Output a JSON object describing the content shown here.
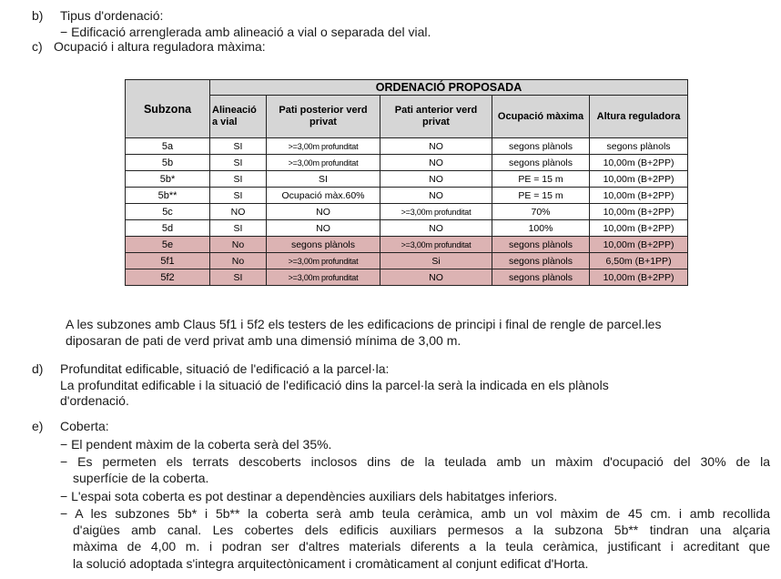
{
  "section_b": {
    "marker": "b)",
    "title": "Tipus d'ordenació:",
    "item": "− Edificació arrenglerada amb alineació a vial o separada del vial."
  },
  "section_c": {
    "marker": "c)",
    "title": "Ocupació i altura reguladora màxima:"
  },
  "table": {
    "group_header": "ORDENACIÓ PROPOSADA",
    "columns": [
      "Subzona",
      "Alineació a vial",
      "Pati posterior verd privat",
      "Pati anterior verd privat",
      "Ocupació màxima",
      "Altura reguladora"
    ],
    "rows": [
      {
        "subzona": "5a",
        "alineacio": "SI",
        "pati_posterior": ">=3,00m profunditat",
        "pati_anterior": "NO",
        "ocupacio": "segons plànols",
        "altura": "segons plànols",
        "highlight": false
      },
      {
        "subzona": "5b",
        "alineacio": "SI",
        "pati_posterior": ">=3,00m profunditat",
        "pati_anterior": "NO",
        "ocupacio": "segons plànols",
        "altura": "10,00m (B+2PP)",
        "highlight": false
      },
      {
        "subzona": "5b*",
        "alineacio": "SI",
        "pati_posterior": "SI",
        "pati_anterior": "NO",
        "ocupacio": "PE = 15 m",
        "altura": "10,00m (B+2PP)",
        "highlight": false
      },
      {
        "subzona": "5b**",
        "alineacio": "SI",
        "pati_posterior": "Ocupació màx.60%",
        "pati_anterior": "NO",
        "ocupacio": "PE = 15 m",
        "altura": "10,00m (B+2PP)",
        "highlight": false
      },
      {
        "subzona": "5c",
        "alineacio": "NO",
        "pati_posterior": "NO",
        "pati_anterior": ">=3,00m profunditat",
        "ocupacio": "70%",
        "altura": "10,00m (B+2PP)",
        "highlight": false
      },
      {
        "subzona": "5d",
        "alineacio": "SI",
        "pati_posterior": "NO",
        "pati_anterior": "NO",
        "ocupacio": "100%",
        "altura": "10,00m (B+2PP)",
        "highlight": false
      },
      {
        "subzona": "5e",
        "alineacio": "No",
        "pati_posterior": "segons plànols",
        "pati_anterior": ">=3,00m profunditat",
        "ocupacio": "segons plànols",
        "altura": "10,00m (B+2PP)",
        "highlight": true
      },
      {
        "subzona": "5f1",
        "alineacio": "No",
        "pati_posterior": ">=3,00m profunditat",
        "pati_anterior": "Si",
        "ocupacio": "segons plànols",
        "altura": "6,50m (B+1PP)",
        "highlight": true
      },
      {
        "subzona": "5f2",
        "alineacio": "SI",
        "pati_posterior": ">=3,00m profunditat",
        "pati_anterior": "NO",
        "ocupacio": "segons plànols",
        "altura": "10,00m (B+2PP)",
        "highlight": true
      }
    ],
    "highlight_color": "#dcb3b3",
    "header_color": "#d6d6d6"
  },
  "note": {
    "lines": [
      "A les subzones amb Claus 5f1 i 5f2  els testers de les edificacions de principi i final de rengle de parcel.les",
      "diposaran de pati de verd privat amb una dimensió mínima de 3,00 m."
    ]
  },
  "section_d": {
    "marker": "d)",
    "title": "Profunditat edificable, situació de l'edificació a la parcel·la:",
    "lines": [
      "La profunditat edificable i la situació de l'edificació dins la parcel·la serà la indicada en els plànols",
      "d'ordenació."
    ]
  },
  "section_e": {
    "marker": "e)",
    "title": "Coberta:",
    "lines": [
      "− El pendent màxim de la coberta serà del 35%.",
      "− Es permeten els terrats descoberts inclosos dins de la teulada amb un màxim d'ocupació del 30% de la",
      "superfície de la coberta.",
      "− L'espai sota coberta es pot destinar a dependències auxiliars dels habitatges inferiors.",
      "− A les subzones 5b* i 5b** la coberta serà amb teula ceràmica, amb un vol màxim de 45 cm. i amb recollida",
      "d'aigües amb canal. Les cobertes dels edificis auxiliars permesos a la subzona 5b** tindran una alçaria",
      "màxima de 4,00 m. i podran ser d'altres materials diferents a la teula ceràmica, justificant i acreditant que",
      "la solució adoptada s'integra arquitectònicament i cromàticament al conjunt edificat d'Horta."
    ]
  }
}
